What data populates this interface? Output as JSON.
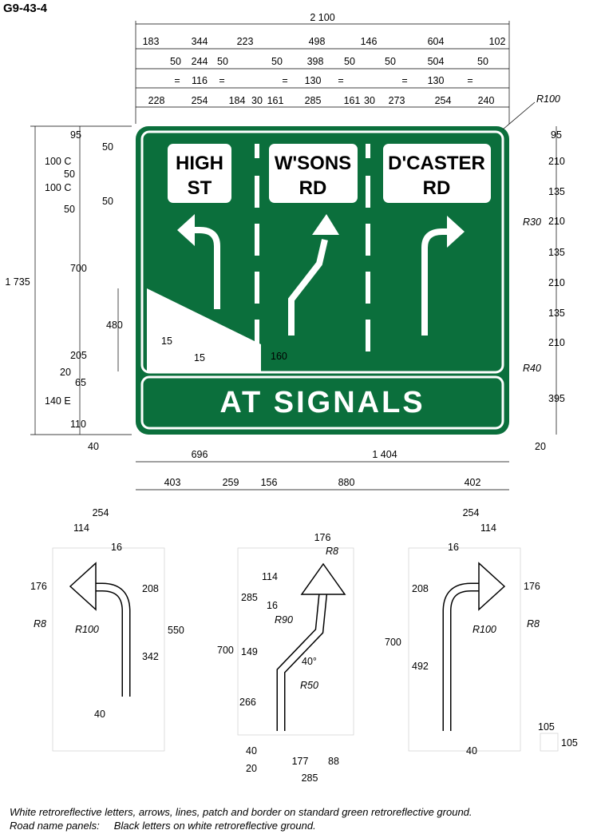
{
  "code": "G9-43-4",
  "sign": {
    "panels": [
      "HIGH",
      "ST",
      "W'SONS",
      "RD",
      "D'CASTER",
      "RD"
    ],
    "banner": "AT SIGNALS",
    "colors": {
      "ground": "#0b6f3c",
      "legend": "#ffffff",
      "panel_text": "#000000"
    }
  },
  "top_dims": {
    "overall": "2 100",
    "row1": [
      "183",
      "344",
      "223",
      "498",
      "146",
      "604",
      "102"
    ],
    "row2": [
      "50",
      "244",
      "50",
      "50",
      "398",
      "50",
      "50",
      "504",
      "50"
    ],
    "row3": [
      "=",
      "116",
      "=",
      "=",
      "130",
      "=",
      "=",
      "130",
      "="
    ],
    "row4": [
      "228",
      "254",
      "184",
      "30",
      "161",
      "285",
      "161",
      "30",
      "273",
      "254",
      "240"
    ],
    "radius": "R100"
  },
  "left_dims": {
    "overall": "1 735",
    "items": [
      "95",
      "50",
      "100 C",
      "50",
      "100 C",
      "50",
      "50",
      "700",
      "480",
      "15",
      "205",
      "15",
      "160",
      "20",
      "65",
      "140 E",
      "110",
      "40"
    ]
  },
  "right_dims": {
    "items": [
      "95",
      "210",
      "135",
      "210",
      "135",
      "210",
      "135",
      "210",
      "395",
      "20"
    ],
    "radii": [
      "R30",
      "R40"
    ]
  },
  "bottom_dims": {
    "row1": [
      "696",
      "1 404"
    ],
    "row2": [
      "403",
      "259",
      "156",
      "880",
      "402"
    ]
  },
  "arrow_left": [
    "254",
    "114",
    "16",
    "176",
    "R8",
    "R100",
    "208",
    "550",
    "342",
    "40"
  ],
  "arrow_mid": [
    "176",
    "R8",
    "114",
    "285",
    "16",
    "R90",
    "700",
    "149",
    "40°",
    "R50",
    "266",
    "40",
    "177",
    "88",
    "20",
    "285"
  ],
  "arrow_right": [
    "254",
    "114",
    "16",
    "176",
    "208",
    "R100",
    "R8",
    "700",
    "492",
    "40"
  ],
  "grid_scale": [
    "105",
    "105"
  ],
  "note": {
    "line1": "White retroreflective letters, arrows, lines, patch and border on standard green retroreflective ground.",
    "line2": "Road name panels:     Black letters on white retroreflective ground."
  }
}
